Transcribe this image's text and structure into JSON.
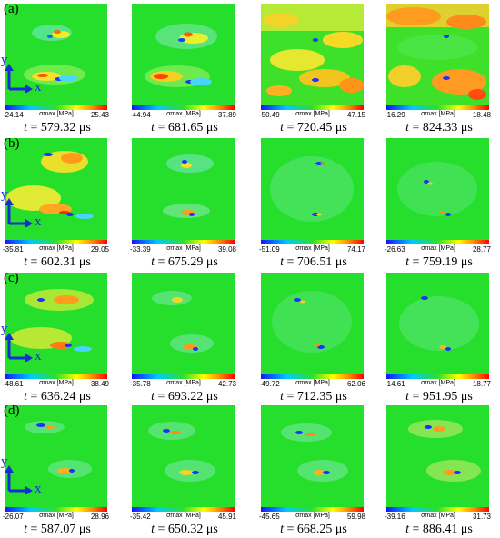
{
  "figure": {
    "colorbar_label": "σmax [MPa]",
    "axis_x": "x",
    "axis_y": "y",
    "time_prefix": "t",
    "rows": [
      {
        "label": "(a)",
        "panels": [
          {
            "min": "-24.14",
            "max": "25.43",
            "time": "= 579.32 μs"
          },
          {
            "min": "-44.94",
            "max": "37.89",
            "time": "= 681.65 μs"
          },
          {
            "min": "-50.49",
            "max": "47.15",
            "time": "= 720.45 μs"
          },
          {
            "min": "-16.29",
            "max": "18.48",
            "time": "= 824.33 μs"
          }
        ]
      },
      {
        "label": "(b)",
        "panels": [
          {
            "min": "-35.81",
            "max": "29.05",
            "time": "= 602.31 μs"
          },
          {
            "min": "-33.39",
            "max": "39.08",
            "time": "= 675.29 μs"
          },
          {
            "min": "-51.09",
            "max": "74.17",
            "time": "= 706.51 μs"
          },
          {
            "min": "-26.63",
            "max": "28.77",
            "time": "= 759.19 μs"
          }
        ]
      },
      {
        "label": "(c)",
        "panels": [
          {
            "min": "-48.61",
            "max": "38.49",
            "time": "= 636.24 μs"
          },
          {
            "min": "-35.78",
            "max": "42.73",
            "time": "= 693.22 μs"
          },
          {
            "min": "-49.72",
            "max": "62.06",
            "time": "= 712.35 μs"
          },
          {
            "min": "-14.61",
            "max": "18.77",
            "time": "= 951.95 μs"
          }
        ]
      },
      {
        "label": "(d)",
        "panels": [
          {
            "min": "-26.07",
            "max": "28.96",
            "time": "= 587.07 μs"
          },
          {
            "min": "-35.42",
            "max": "45.91",
            "time": "= 650.32 μs"
          },
          {
            "min": "-45.65",
            "max": "59.98",
            "time": "= 668.25 μs"
          },
          {
            "min": "-39.16",
            "max": "31.73",
            "time": "= 886.41 μs"
          }
        ]
      }
    ]
  }
}
